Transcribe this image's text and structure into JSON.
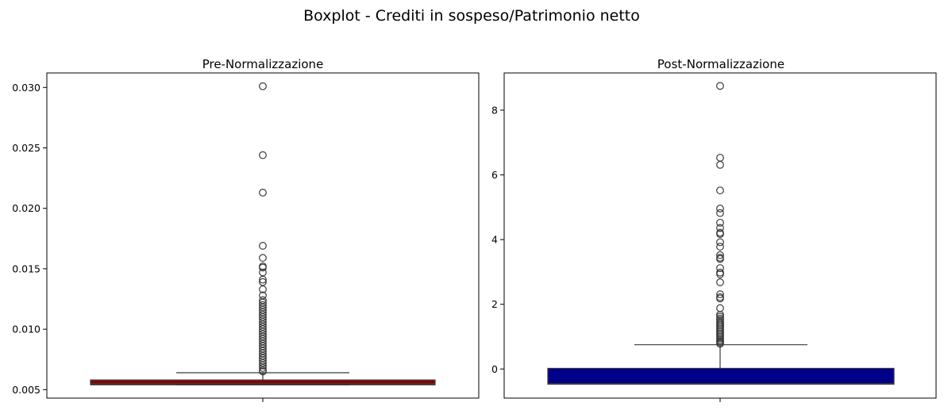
{
  "figure": {
    "title": "Boxplot - Crediti in sospeso/Patrimonio netto"
  },
  "chart_data": [
    {
      "type": "box",
      "title": "Pre-Normalizzazione",
      "xlabel": "",
      "ylabel": "",
      "ylim": [
        0.0043,
        0.0312
      ],
      "yticks": [
        0.005,
        0.01,
        0.015,
        0.02,
        0.025,
        0.03
      ],
      "ytick_labels": [
        "0.005",
        "0.010",
        "0.015",
        "0.020",
        "0.025",
        "0.030"
      ],
      "color": "#8b0000",
      "whisker_low": 0.0054,
      "q1": 0.0054,
      "median": 0.0055,
      "q3": 0.0058,
      "whisker_high": 0.0064,
      "outliers": [
        0.0301,
        0.0244,
        0.0213,
        0.0169,
        0.0159,
        0.0152,
        0.0151,
        0.0147,
        0.0141,
        0.0139,
        0.0133,
        0.0128,
        0.0124,
        0.0122,
        0.012,
        0.0118,
        0.0116,
        0.0114,
        0.0112,
        0.011,
        0.0108,
        0.0106,
        0.0104,
        0.0102,
        0.01,
        0.0098,
        0.0096,
        0.0094,
        0.0092,
        0.009,
        0.0088,
        0.0086,
        0.0084,
        0.0082,
        0.008,
        0.0078,
        0.0076,
        0.0074,
        0.0072,
        0.007,
        0.0068,
        0.0066,
        0.0065
      ],
      "grid": false
    },
    {
      "type": "box",
      "title": "Post-Normalizzazione",
      "xlabel": "",
      "ylabel": "",
      "ylim": [
        -0.9,
        9.15
      ],
      "yticks": [
        0,
        2,
        4,
        6,
        8
      ],
      "ytick_labels": [
        "0",
        "2",
        "4",
        "6",
        "8"
      ],
      "color": "#00008b",
      "whisker_low": -0.47,
      "q1": -0.47,
      "median": -0.45,
      "q3": 0.02,
      "whisker_high": 0.75,
      "outliers": [
        8.75,
        6.53,
        6.31,
        5.52,
        4.96,
        4.82,
        4.52,
        4.36,
        4.21,
        4.17,
        3.92,
        3.78,
        3.52,
        3.44,
        3.4,
        3.12,
        2.98,
        2.93,
        2.68,
        2.31,
        2.22,
        2.18,
        1.88,
        1.68,
        1.62,
        1.56,
        1.51,
        1.45,
        1.4,
        1.35,
        1.3,
        1.25,
        1.2,
        1.15,
        1.1,
        1.05,
        1.0,
        0.95,
        0.9,
        0.86,
        0.82,
        0.78
      ],
      "grid": false
    }
  ]
}
